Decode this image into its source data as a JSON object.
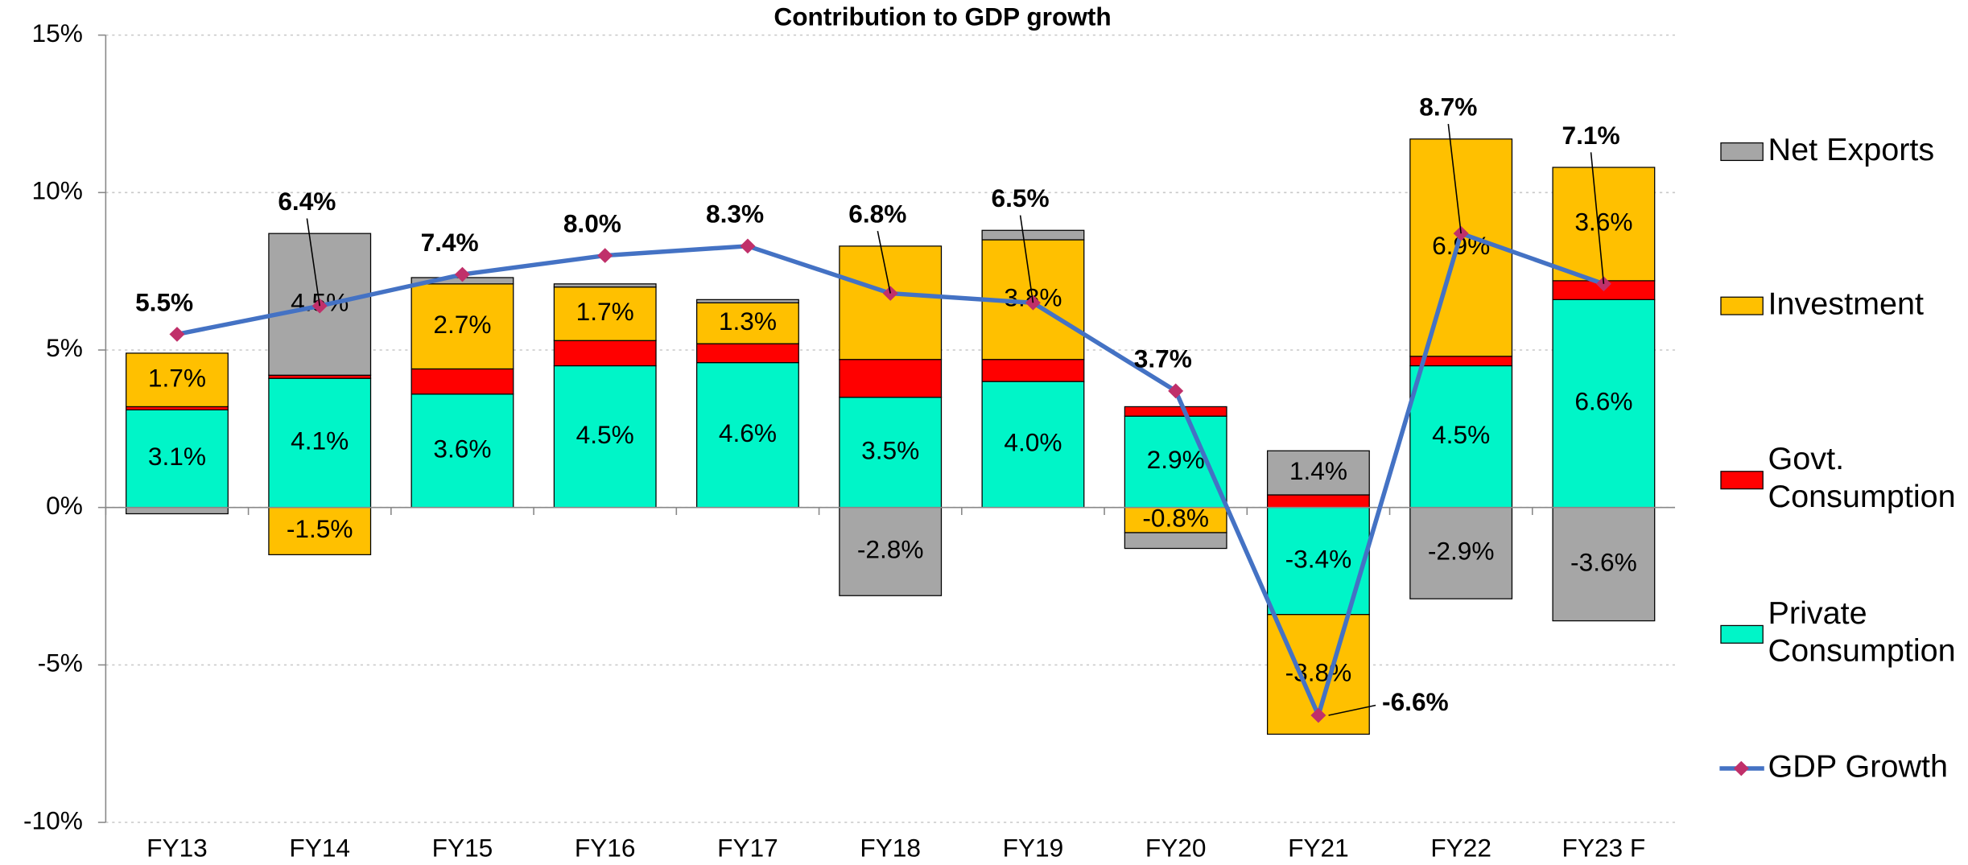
{
  "chart_data": {
    "type": "bar",
    "stacked": true,
    "title": "Contribution to GDP growth",
    "categories": [
      "FY13",
      "FY14",
      "FY15",
      "FY16",
      "FY17",
      "FY18",
      "FY19",
      "FY20",
      "FY21",
      "FY22",
      "FY23 F"
    ],
    "ylim": [
      -10,
      15
    ],
    "yticks": [
      {
        "value": -10,
        "label": "-10%"
      },
      {
        "value": -5,
        "label": "-5%"
      },
      {
        "value": 0,
        "label": "0%"
      },
      {
        "value": 5,
        "label": "5%"
      },
      {
        "value": 10,
        "label": "10%"
      },
      {
        "value": 15,
        "label": "15%"
      }
    ],
    "grid": true,
    "legend": "right",
    "series": [
      {
        "name": "Private\nConsumption",
        "color": "#00f5c8",
        "values": [
          3.1,
          4.1,
          3.6,
          4.5,
          4.6,
          3.5,
          4.0,
          2.9,
          -3.4,
          4.5,
          6.6
        ],
        "value_labels": [
          "3.1%",
          "4.1%",
          "3.6%",
          "4.5%",
          "4.6%",
          "3.5%",
          "4.0%",
          "2.9%",
          "-3.4%",
          "4.5%",
          "6.6%"
        ]
      },
      {
        "name": "Govt.\nConsumption",
        "color": "#ff0000",
        "values": [
          0.1,
          0.1,
          0.8,
          0.8,
          0.6,
          1.2,
          0.7,
          0.3,
          0.4,
          0.3,
          0.6
        ],
        "value_labels": [
          null,
          null,
          null,
          null,
          null,
          null,
          null,
          null,
          null,
          null,
          null
        ]
      },
      {
        "name": "Investment",
        "color": "#ffc000",
        "values": [
          1.7,
          -1.5,
          2.7,
          1.7,
          1.3,
          3.6,
          3.8,
          -0.8,
          -3.8,
          6.9,
          3.6
        ],
        "value_labels": [
          "1.7%",
          "-1.5%",
          "2.7%",
          "1.7%",
          "1.3%",
          null,
          "3.8%",
          "-0.8%",
          "-3.8%",
          "6.9%",
          "3.6%"
        ]
      },
      {
        "name": "Net Exports",
        "color": "#a6a6a6",
        "values": [
          -0.2,
          4.5,
          0.2,
          0.1,
          0.1,
          -2.8,
          0.3,
          -0.5,
          1.4,
          -2.9,
          -3.6
        ],
        "value_labels": [
          null,
          "4.5%",
          null,
          null,
          null,
          "-2.8%",
          null,
          null,
          "1.4%",
          "-2.9%",
          "-3.6%"
        ]
      },
      {
        "name": "GDP Growth",
        "type": "line",
        "color": "#4472c4",
        "marker_color": "#c0306a",
        "values": [
          5.5,
          6.4,
          7.4,
          8.0,
          8.3,
          6.8,
          6.5,
          3.7,
          -6.6,
          8.7,
          7.1
        ],
        "value_labels": [
          "5.5%",
          "6.4%",
          "7.4%",
          "8.0%",
          "8.3%",
          "6.8%",
          "6.5%",
          "3.7%",
          "-6.6%",
          "8.7%",
          "7.1%"
        ]
      }
    ]
  }
}
